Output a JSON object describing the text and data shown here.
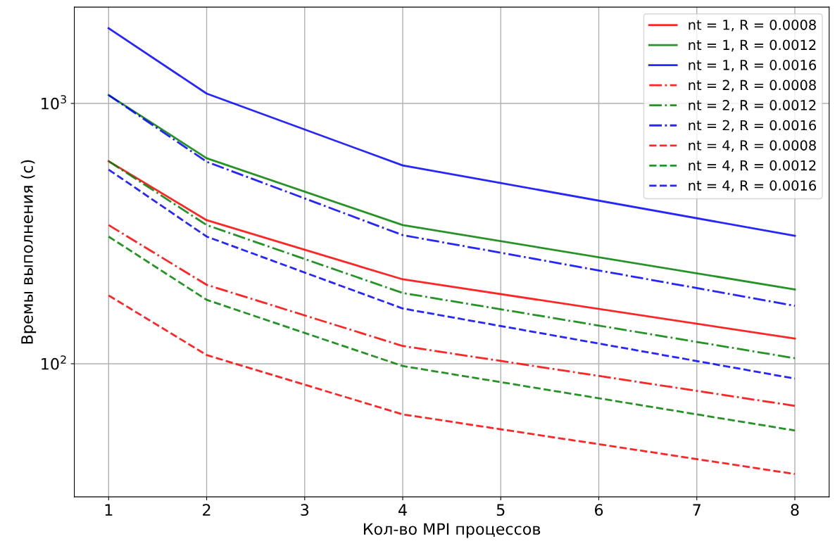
{
  "chart_data": {
    "type": "line",
    "xlabel": "Кол-во MPI процессов",
    "ylabel": "Времы выполнения (с)",
    "log": "y",
    "grid": true,
    "legend": "top right",
    "xlim": [
      0.65,
      8.35
    ],
    "xticks": [
      1,
      2,
      3,
      4,
      5,
      6,
      7,
      8
    ],
    "ylim": [
      30.8,
      2345
    ],
    "yticks": [
      {
        "value": 100,
        "label": "10$^{2}$"
      },
      {
        "value": 1000,
        "label": "10$^{3}$"
      }
    ],
    "x": [
      1,
      2,
      4,
      8
    ],
    "series": [
      {
        "name": "nt = 1, R = 0.0008",
        "color": "#ff0000",
        "line_style": "solid",
        "values": [
          600,
          356,
          211,
          125
        ]
      },
      {
        "name": "nt = 1, R = 0.0012",
        "color": "#008000",
        "line_style": "solid",
        "values": [
          1077,
          616,
          341,
          193
        ]
      },
      {
        "name": "nt = 1, R = 0.0016",
        "color": "#0000ff",
        "line_style": "solid",
        "values": [
          1946,
          1091,
          578,
          310
        ]
      },
      {
        "name": "nt = 2, R = 0.0008",
        "color": "#ff0000",
        "line_style": "dashdot",
        "values": [
          341,
          201,
          117,
          68.9
        ]
      },
      {
        "name": "nt = 2, R = 0.0012",
        "color": "#008000",
        "line_style": "dashdot",
        "values": [
          600,
          341,
          187,
          105
        ]
      },
      {
        "name": "nt = 2, R = 0.0016",
        "color": "#0000ff",
        "line_style": "dashdot",
        "values": [
          1077,
          597,
          312,
          167
        ]
      },
      {
        "name": "nt = 4, R = 0.0008",
        "color": "#ff0000",
        "line_style": "dashed",
        "values": [
          183,
          108,
          63.9,
          37.7
        ]
      },
      {
        "name": "nt = 4, R = 0.0012",
        "color": "#008000",
        "line_style": "dashed",
        "values": [
          308,
          176,
          98,
          55.4
        ]
      },
      {
        "name": "nt = 4, R = 0.0016",
        "color": "#0000ff",
        "line_style": "dashed",
        "values": [
          557,
          308,
          163,
          87.7
        ]
      }
    ]
  }
}
